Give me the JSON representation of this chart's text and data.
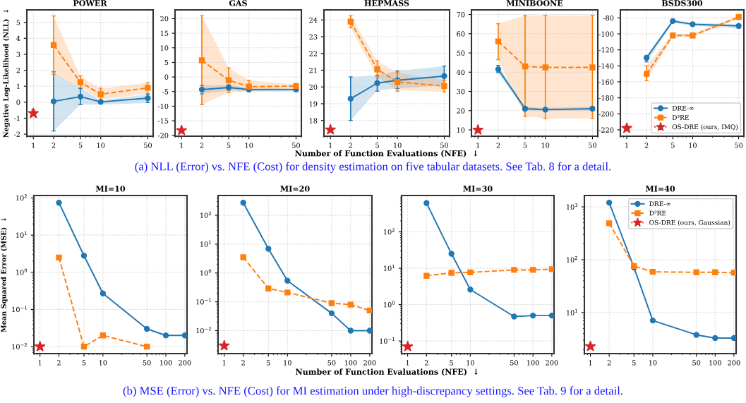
{
  "chart_data": [
    {
      "type": "line",
      "title": "POWER",
      "ylabel": "Negative Log-Likelihood (NLL)  ↓",
      "log": "x",
      "grid": true,
      "xlim": [
        0.8,
        60
      ],
      "xticks": [
        1,
        2,
        5,
        10,
        50
      ],
      "ylim": [
        -2.13,
        5.78
      ],
      "yticks": [
        -2,
        -1,
        0,
        1,
        2,
        3,
        4,
        5
      ],
      "annotations": [
        "(a) NLL (Error) vs. NFE (Cost) for density estimation on five tabular datasets. See Tab. 8 for a detail."
      ],
      "series": [
        {
          "color": "#1f77b4",
          "marker": "circle",
          "line_style": "solid",
          "x": [
            2,
            5,
            10,
            50
          ],
          "values": [
            0.05,
            0.35,
            0.02,
            0.25
          ],
          "errors": [
            [
              -1.8,
              1.9
            ],
            [
              -0.15,
              0.85
            ],
            [
              -0.05,
              0.1
            ],
            [
              -0.02,
              0.5
            ]
          ],
          "lower": [
            -1.8,
            -0.15,
            -0.15,
            -0.05
          ],
          "upper": [
            1.8,
            0.9,
            0.1,
            0.5
          ]
        },
        {
          "color": "#ff7f0e",
          "marker": "square",
          "line_style": "dashed",
          "x": [
            2,
            5,
            10,
            50
          ],
          "values": [
            3.58,
            1.25,
            0.5,
            0.9
          ],
          "errors": [
            [
              1.75,
              5.4
            ],
            [
              0.9,
              1.65
            ],
            [
              0.1,
              0.88
            ],
            [
              0.55,
              1.22
            ]
          ],
          "lower": [
            1.75,
            0.9,
            0.15,
            0.55
          ],
          "upper": [
            5.4,
            1.6,
            0.85,
            1.22
          ]
        },
        {
          "color": "#d62728",
          "marker": "star",
          "line_style": "dotted",
          "x": [
            1
          ],
          "values": [
            -0.7
          ],
          "errors": [
            [
              -0.85,
              -0.5
            ]
          ]
        }
      ]
    },
    {
      "type": "line",
      "title": "GAS",
      "log": "x",
      "grid": true,
      "xlim": [
        0.8,
        60
      ],
      "xticks": [
        1,
        2,
        5,
        10,
        50
      ],
      "ylim": [
        -20.3,
        23
      ],
      "yticks": [
        -20,
        -15,
        -10,
        -5,
        0,
        5,
        10,
        15,
        20
      ],
      "series": [
        {
          "color": "#1f77b4",
          "marker": "circle",
          "line_style": "solid",
          "x": [
            2,
            5,
            10,
            50
          ],
          "values": [
            -4.3,
            -3.6,
            -4.3,
            -4.3
          ],
          "errors": [
            [
              -5.8,
              -2.9
            ],
            [
              -4.5,
              -2.7
            ],
            [
              -4.9,
              -3.7
            ],
            [
              -4.9,
              -3.7
            ]
          ],
          "lower": [
            -5.8,
            -4.5,
            -4.9,
            -4.9
          ],
          "upper": [
            -2.9,
            -2.7,
            -3.7,
            -3.7
          ]
        },
        {
          "color": "#ff7f0e",
          "marker": "square",
          "line_style": "dashed",
          "x": [
            2,
            5,
            10,
            50
          ],
          "values": [
            5.7,
            -1.1,
            -3.3,
            -3.1
          ],
          "errors": [
            [
              -9.5,
              21
            ],
            [
              -5.3,
              3.1
            ],
            [
              -5.0,
              -1.2
            ],
            [
              -3.7,
              -2.5
            ]
          ],
          "lower": [
            -9.5,
            -5.3,
            -5.0,
            -3.7
          ],
          "upper": [
            21,
            3.1,
            -1.2,
            -2.5
          ]
        },
        {
          "color": "#d62728",
          "marker": "star",
          "line_style": "dotted",
          "x": [
            1
          ],
          "values": [
            -18.3
          ],
          "errors": [
            [
              -18.8,
              -17.8
            ]
          ]
        }
      ]
    },
    {
      "type": "line",
      "title": "HEPMASS",
      "xlabel": "Number of Function Evaluations (NFE)  ↓",
      "log": "x",
      "grid": true,
      "xlim": [
        0.8,
        60
      ],
      "xticks": [
        1,
        2,
        5,
        10,
        50
      ],
      "ylim": [
        17.06,
        24.6
      ],
      "yticks": [
        18,
        19,
        20,
        21,
        22,
        23,
        24
      ],
      "series": [
        {
          "color": "#1f77b4",
          "marker": "circle",
          "line_style": "solid",
          "x": [
            2,
            5,
            10,
            50
          ],
          "values": [
            19.3,
            20.23,
            20.4,
            20.65
          ],
          "errors": [
            [
              18.0,
              20.6
            ],
            [
              19.75,
              20.7
            ],
            [
              19.9,
              20.95
            ],
            [
              20.1,
              21.25
            ]
          ],
          "lower": [
            18.0,
            19.8,
            19.9,
            20.1
          ],
          "upper": [
            20.6,
            20.7,
            20.95,
            21.25
          ]
        },
        {
          "color": "#ff7f0e",
          "marker": "square",
          "line_style": "dashed",
          "x": [
            2,
            5,
            10,
            50
          ],
          "values": [
            23.9,
            21.05,
            20.3,
            20.05
          ],
          "errors": [
            [
              23.55,
              24.25
            ],
            [
              20.6,
              21.55
            ],
            [
              19.75,
              20.85
            ],
            [
              19.7,
              20.4
            ]
          ],
          "lower": [
            23.55,
            20.6,
            19.8,
            19.7
          ],
          "upper": [
            24.25,
            21.55,
            20.85,
            20.4
          ]
        },
        {
          "color": "#d62728",
          "marker": "star",
          "line_style": "dotted",
          "x": [
            1
          ],
          "values": [
            17.45
          ]
        }
      ]
    },
    {
      "type": "line",
      "title": "MINIBOONE",
      "log": "x",
      "grid": true,
      "xlim": [
        0.8,
        60
      ],
      "xticks": [
        1,
        2,
        5,
        10,
        50
      ],
      "ylim": [
        6.7,
        72.4
      ],
      "yticks": [
        10,
        20,
        30,
        40,
        50,
        60,
        70
      ],
      "series": [
        {
          "color": "#1f77b4",
          "marker": "circle",
          "line_style": "solid",
          "x": [
            2,
            5,
            10,
            50
          ],
          "values": [
            41.5,
            21,
            20.5,
            21
          ],
          "errors": [
            [
              39.8,
              43.5
            ],
            [
              20,
              22
            ],
            [
              19.8,
              21.5
            ],
            [
              20,
              22
            ]
          ],
          "lower": [
            39.5,
            20,
            19.8,
            20
          ],
          "upper": [
            43.5,
            22,
            21.5,
            22
          ]
        },
        {
          "color": "#ff7f0e",
          "marker": "square",
          "line_style": "dashed",
          "x": [
            2,
            5,
            10,
            50
          ],
          "values": [
            56,
            43,
            42.5,
            42.5
          ],
          "errors": [
            [
              46.5,
              65.2
            ],
            [
              17,
              69.5
            ],
            [
              16,
              69.5
            ],
            [
              16,
              69.5
            ]
          ],
          "lower": [
            46.5,
            17,
            16,
            16
          ],
          "upper": [
            65.2,
            69.5,
            69.5,
            69.5
          ]
        },
        {
          "color": "#d62728",
          "marker": "star",
          "line_style": "dotted",
          "x": [
            1
          ],
          "values": [
            10
          ]
        }
      ]
    },
    {
      "type": "line",
      "title": "BSDS300",
      "log": "x",
      "grid": true,
      "legend": "lower right",
      "xlim": [
        0.8,
        60
      ],
      "xticks": [
        1,
        2,
        5,
        10,
        50
      ],
      "ylim": [
        -228,
        -70
      ],
      "yticks": [
        -220,
        -200,
        -180,
        -160,
        -140,
        -120,
        -100,
        -80
      ],
      "series": [
        {
          "name": "DRE-∞",
          "color": "#1f77b4",
          "marker": "circle",
          "line_style": "solid",
          "x": [
            2,
            5,
            10,
            50
          ],
          "values": [
            -130,
            -84,
            -88,
            -90
          ],
          "errors": [
            [
              -135,
              -127
            ],
            [
              -85.5,
              -82.5
            ],
            [
              -90,
              -86
            ],
            [
              -93,
              -88
            ]
          ],
          "lower": [
            -135,
            -86,
            -90,
            -93
          ],
          "upper": [
            -127,
            -82,
            -86,
            -88
          ]
        },
        {
          "name": "D³RE",
          "color": "#ff7f0e",
          "marker": "square",
          "line_style": "dashed",
          "x": [
            2,
            5,
            10,
            50
          ],
          "values": [
            -150,
            -102,
            -102,
            -79
          ],
          "errors": [
            [
              -158.5,
              -140
            ],
            [
              -104,
              -100
            ],
            [
              -104,
              -100
            ],
            [
              -81,
              -77
            ]
          ],
          "lower": [
            -158.5,
            -104,
            -104,
            -81
          ],
          "upper": [
            -140,
            -100,
            -100,
            -77
          ]
        },
        {
          "name": "OS-DRE (ours, IMQ)",
          "color": "#d62728",
          "marker": "star",
          "line_style": "dotted",
          "x": [
            1
          ],
          "values": [
            -218
          ],
          "errors": [
            [
              -221,
              -215
            ]
          ]
        }
      ]
    },
    {
      "type": "line",
      "title": "MI=10",
      "ylabel": "Mean Squared Error (MSE)  ↓",
      "log": "xy",
      "grid": true,
      "xlim": [
        0.8,
        217
      ],
      "xticks": [
        1,
        2,
        5,
        10,
        50,
        100,
        200
      ],
      "ylim": [
        0.0065,
        116
      ],
      "yticks": [
        {
          "value": 0.01,
          "label": "10$^{−2}$"
        },
        {
          "value": 0.1,
          "label": "10$^{−1}$"
        },
        {
          "value": 1,
          "label": "10$^{0}$"
        },
        {
          "value": 10,
          "label": "10$^{1}$"
        },
        {
          "value": 100,
          "label": "10$^{2}$"
        }
      ],
      "annotations": [
        "(b) MSE (Error) vs. NFE (Cost) for MI estimation under high-discrepancy settings. See Tab. 9 for a detail."
      ],
      "series": [
        {
          "color": "#1f77b4",
          "marker": "circle",
          "line_style": "solid",
          "x": [
            2,
            5,
            10,
            50,
            100,
            200
          ],
          "values": [
            74,
            2.8,
            0.27,
            0.03,
            0.02,
            0.02
          ]
        },
        {
          "color": "#ff7f0e",
          "marker": "square",
          "line_style": "dashed",
          "x": [
            2,
            5,
            10,
            50
          ],
          "values": [
            2.5,
            0.01,
            0.02,
            0.01
          ]
        },
        {
          "color": "#d62728",
          "marker": "star",
          "line_style": "dotted",
          "x": [
            1
          ],
          "values": [
            0.01
          ]
        }
      ]
    },
    {
      "type": "line",
      "title": "MI=20",
      "xlabel": "Number of Function Evaluations (NFE)  ↓",
      "log": "xy",
      "grid": true,
      "xlim": [
        0.8,
        217
      ],
      "xticks": [
        1,
        2,
        5,
        10,
        50,
        100,
        200
      ],
      "ylim": [
        0.0016,
        485
      ],
      "yticks": [
        {
          "value": 0.01,
          "label": "10$^{−2}$"
        },
        {
          "value": 0.1,
          "label": "10$^{−1}$"
        },
        {
          "value": 1,
          "label": "10$^{0}$"
        },
        {
          "value": 10,
          "label": "10$^{1}$"
        },
        {
          "value": 100,
          "label": "10$^{2}$"
        }
      ],
      "series": [
        {
          "color": "#1f77b4",
          "marker": "circle",
          "line_style": "solid",
          "x": [
            2,
            5,
            10,
            50,
            100,
            200
          ],
          "values": [
            272,
            6.9,
            0.54,
            0.04,
            0.01,
            0.01
          ]
        },
        {
          "color": "#ff7f0e",
          "marker": "square",
          "line_style": "dashed",
          "x": [
            2,
            5,
            10,
            50,
            100,
            200
          ],
          "values": [
            3.5,
            0.29,
            0.21,
            0.09,
            0.08,
            0.05
          ]
        },
        {
          "color": "#d62728",
          "marker": "star",
          "line_style": "dotted",
          "x": [
            1
          ],
          "values": [
            0.003
          ]
        }
      ]
    },
    {
      "type": "line",
      "title": "MI=30",
      "log": "xy",
      "grid": true,
      "xlim": [
        0.8,
        217
      ],
      "xticks": [
        1,
        2,
        5,
        10,
        50,
        100,
        200
      ],
      "ylim": [
        0.045,
        1000
      ],
      "yticks": [
        {
          "value": 0.1,
          "label": "10$^{−1}$"
        },
        {
          "value": 1,
          "label": "10$^{0}$"
        },
        {
          "value": 10,
          "label": "10$^{1}$"
        },
        {
          "value": 100,
          "label": "10$^{2}$"
        }
      ],
      "series": [
        {
          "color": "#1f77b4",
          "marker": "circle",
          "line_style": "solid",
          "x": [
            2,
            5,
            10,
            50,
            100,
            200
          ],
          "values": [
            620,
            25,
            2.6,
            0.47,
            0.5,
            0.5
          ]
        },
        {
          "color": "#ff7f0e",
          "marker": "square",
          "line_style": "dashed",
          "x": [
            2,
            5,
            10,
            50,
            100,
            200
          ],
          "values": [
            6.2,
            7.5,
            7.7,
            9,
            9,
            9.4
          ]
        },
        {
          "color": "#d62728",
          "marker": "star",
          "line_style": "dotted",
          "x": [
            1
          ],
          "values": [
            0.07
          ]
        }
      ]
    },
    {
      "type": "line",
      "title": "MI=40",
      "log": "xy",
      "grid": true,
      "legend": "upper right",
      "xlim": [
        0.8,
        217
      ],
      "xticks": [
        1,
        2,
        5,
        10,
        50,
        100,
        200
      ],
      "ylim": [
        1.68,
        1640
      ],
      "yticks": [
        {
          "value": 10,
          "label": "10$^{1}$"
        },
        {
          "value": 100,
          "label": "10$^{2}$"
        },
        {
          "value": 1000,
          "label": "10$^{3}$"
        }
      ],
      "series": [
        {
          "name": "DRE-∞",
          "color": "#1f77b4",
          "marker": "circle",
          "line_style": "solid",
          "x": [
            2,
            5,
            10,
            50,
            100,
            200
          ],
          "values": [
            1200,
            71,
            7.1,
            3.8,
            3.3,
            3.3
          ]
        },
        {
          "name": "D³RE",
          "color": "#ff7f0e",
          "marker": "square",
          "line_style": "dashed",
          "x": [
            2,
            5,
            10,
            50,
            100,
            200
          ],
          "values": [
            490,
            76,
            59,
            58,
            58,
            57
          ]
        },
        {
          "name": "OS-DRE (ours, Gaussian)",
          "color": "#d62728",
          "marker": "star",
          "line_style": "dotted",
          "x": [
            1
          ],
          "values": [
            2.3
          ]
        }
      ]
    }
  ]
}
